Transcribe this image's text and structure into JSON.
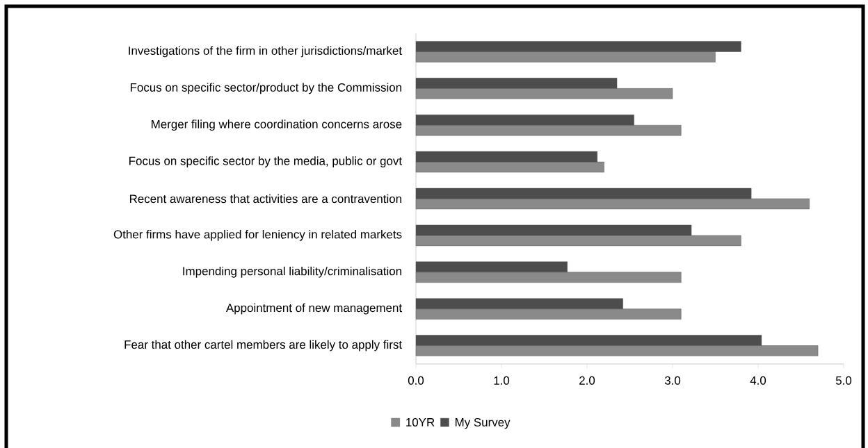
{
  "chart_data": {
    "type": "bar",
    "orientation": "horizontal",
    "categories": [
      "Investigations of the firm in other jurisdictions/market",
      "Focus on specific sector/product by the Commission",
      "Merger filing where coordination concerns arose",
      "Focus on specific sector by the media, public or govt",
      "Recent awareness that activities are a contravention",
      "Other firms have applied for leniency in related markets",
      "Impending personal liability/criminalisation",
      "Appointment of new management",
      "Fear that other cartel members are likely to apply first"
    ],
    "series": [
      {
        "name": "10YR",
        "color": "#8a8a8a",
        "values": [
          3.5,
          3.0,
          3.1,
          2.2,
          4.6,
          3.8,
          3.1,
          3.1,
          4.7
        ]
      },
      {
        "name": "My Survey",
        "color": "#4d4d4d",
        "values": [
          3.8,
          2.35,
          2.55,
          2.12,
          3.92,
          3.22,
          1.77,
          2.42,
          4.04
        ]
      }
    ],
    "xlim": [
      0,
      5
    ],
    "xticks": [
      {
        "value": 0,
        "label": "0.0"
      },
      {
        "value": 1,
        "label": "1.0"
      },
      {
        "value": 2,
        "label": "2.0"
      },
      {
        "value": 3,
        "label": "3.0"
      },
      {
        "value": 4,
        "label": "4.0"
      },
      {
        "value": 5,
        "label": "5.0"
      }
    ],
    "grid": false,
    "legend": "bottom"
  }
}
